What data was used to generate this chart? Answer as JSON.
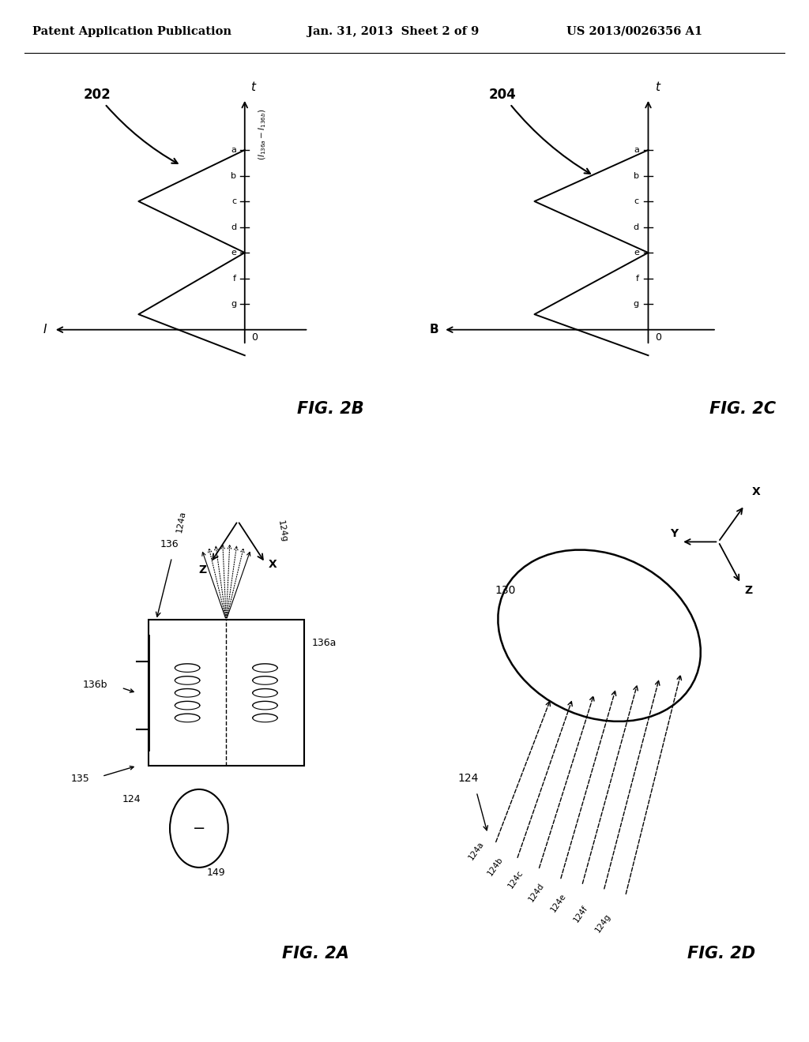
{
  "bg_color": "#ffffff",
  "header_left": "Patent Application Publication",
  "header_mid": "Jan. 31, 2013  Sheet 2 of 9",
  "header_right": "US 2013/0026356 A1",
  "fig_label_2B": "FIG. 2B",
  "fig_label_2C": "FIG. 2C",
  "fig_label_2A": "FIG. 2A",
  "fig_label_2D": "FIG. 2D",
  "tick_labels": [
    "g",
    "f",
    "e",
    "d",
    "c",
    "b",
    "a"
  ]
}
